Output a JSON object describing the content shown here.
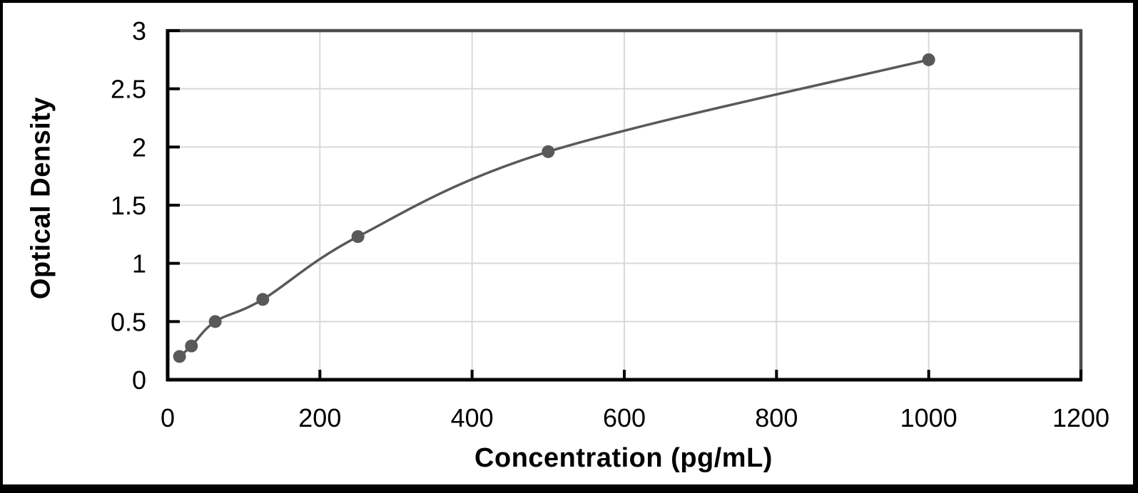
{
  "chart_data": {
    "type": "line",
    "title": "",
    "xlabel": "Concentration (pg/mL)",
    "ylabel": "Optical Density",
    "x": [
      15.6,
      31.2,
      62.5,
      125,
      250,
      500,
      1000
    ],
    "y": [
      0.2,
      0.29,
      0.5,
      0.69,
      1.23,
      1.96,
      2.75
    ],
    "xlim": [
      0,
      1200
    ],
    "ylim": [
      0,
      3
    ],
    "x_ticks": [
      0,
      200,
      400,
      600,
      800,
      1000,
      1200
    ],
    "x_tick_labels": [
      "0",
      "200",
      "400",
      "600",
      "800",
      "1000",
      "1200"
    ],
    "y_ticks": [
      0,
      0.5,
      1,
      1.5,
      2,
      2.5,
      3
    ],
    "y_tick_labels": [
      "0",
      "0.5",
      "1",
      "1.5",
      "2",
      "2.5",
      "3"
    ],
    "grid": true,
    "legend": false,
    "marker": "circle",
    "marker_radius": 9,
    "line_width": 3.5,
    "colors": {
      "series": "#595959",
      "marker": "#595959",
      "gridline": "#d9d9d9",
      "axis_line": "#000000",
      "plot_border": "#4d4d4d",
      "tick_label": "#000000",
      "axis_title": "#000000",
      "frame": "#000000",
      "background": "#ffffff"
    }
  }
}
